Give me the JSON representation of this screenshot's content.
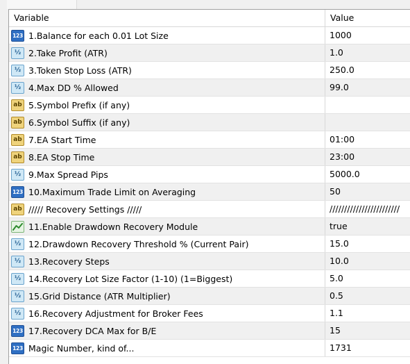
{
  "columns": {
    "variable": "Variable",
    "value": "Value"
  },
  "icon_glyphs": {
    "int": "123",
    "dbl": "½",
    "str": "ab"
  },
  "rows": [
    {
      "name": "1.Balance for each 0.01 Lot Size",
      "value": "1000",
      "icon": "integer-icon"
    },
    {
      "name": "2.Take Profit (ATR)",
      "value": "1.0",
      "icon": "double-icon"
    },
    {
      "name": "3.Token Stop Loss (ATR)",
      "value": "250.0",
      "icon": "double-icon"
    },
    {
      "name": "4.Max DD % Allowed",
      "value": "99.0",
      "icon": "double-icon"
    },
    {
      "name": "5.Symbol Prefix (if any)",
      "value": "",
      "icon": "string-icon"
    },
    {
      "name": "6.Symbol Suffix (if any)",
      "value": "",
      "icon": "string-icon"
    },
    {
      "name": "7.EA Start Time",
      "value": "01:00",
      "icon": "string-icon"
    },
    {
      "name": "8.EA Stop Time",
      "value": "23:00",
      "icon": "string-icon"
    },
    {
      "name": "9.Max Spread Pips",
      "value": "5000.0",
      "icon": "double-icon"
    },
    {
      "name": "10.Maximum Trade Limit on Averaging",
      "value": "50",
      "icon": "integer-icon"
    },
    {
      "name": "///// Recovery Settings /////",
      "value": "////////////////////////",
      "icon": "string-icon"
    },
    {
      "name": "11.Enable Drawdown Recovery Module",
      "value": "true",
      "icon": "boolean-icon"
    },
    {
      "name": "12.Drawdown Recovery Threshold % (Current Pair)",
      "value": "15.0",
      "icon": "double-icon"
    },
    {
      "name": "13.Recovery Steps",
      "value": "10.0",
      "icon": "double-icon"
    },
    {
      "name": "14.Recovery Lot Size Factor (1-10) (1=Biggest)",
      "value": "5.0",
      "icon": "double-icon"
    },
    {
      "name": "15.Grid Distance (ATR Multiplier)",
      "value": "0.5",
      "icon": "double-icon"
    },
    {
      "name": "16.Recovery Adjustment for Broker Fees",
      "value": "1.1",
      "icon": "double-icon"
    },
    {
      "name": "17.Recovery DCA Max for B/E",
      "value": "15",
      "icon": "integer-icon"
    },
    {
      "name": "Magic Number, kind of...",
      "value": "1731",
      "icon": "integer-icon"
    }
  ]
}
